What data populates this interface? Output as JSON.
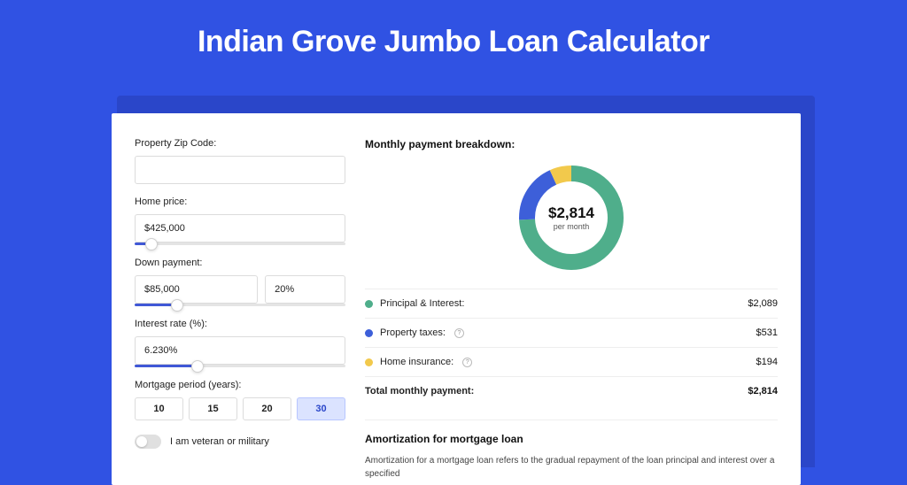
{
  "page": {
    "title": "Indian Grove Jumbo Loan Calculator",
    "background_color": "#3052e3",
    "shadow_color": "#2a46c9",
    "card_bg": "#ffffff"
  },
  "inputs": {
    "zip": {
      "label": "Property Zip Code:",
      "value": ""
    },
    "home_price": {
      "label": "Home price:",
      "value": "$425,000",
      "slider_pct": 8
    },
    "down_payment": {
      "label": "Down payment:",
      "amount": "$85,000",
      "percent": "20%",
      "slider_pct": 20
    },
    "interest": {
      "label": "Interest rate (%):",
      "value": "6.230%",
      "slider_pct": 30
    },
    "period": {
      "label": "Mortgage period (years):",
      "options": [
        "10",
        "15",
        "20",
        "30"
      ],
      "active": "30"
    },
    "veteran": {
      "label": "I am veteran or military",
      "checked": false
    }
  },
  "breakdown": {
    "title": "Monthly payment breakdown:",
    "donut": {
      "amount": "$2,814",
      "sub": "per month",
      "slices": [
        {
          "key": "pi",
          "value": 2089,
          "color": "#4fae8b"
        },
        {
          "key": "tax",
          "value": 531,
          "color": "#3d5fd9"
        },
        {
          "key": "ins",
          "value": 194,
          "color": "#f2c94c"
        }
      ],
      "stroke_width": 18,
      "radius": 50
    },
    "rows": [
      {
        "label": "Principal & Interest:",
        "value": "$2,089",
        "color": "#4fae8b",
        "info": false
      },
      {
        "label": "Property taxes:",
        "value": "$531",
        "color": "#3d5fd9",
        "info": true
      },
      {
        "label": "Home insurance:",
        "value": "$194",
        "color": "#f2c94c",
        "info": true
      }
    ],
    "total": {
      "label": "Total monthly payment:",
      "value": "$2,814"
    }
  },
  "amortization": {
    "title": "Amortization for mortgage loan",
    "text": "Amortization for a mortgage loan refers to the gradual repayment of the loan principal and interest over a specified"
  }
}
